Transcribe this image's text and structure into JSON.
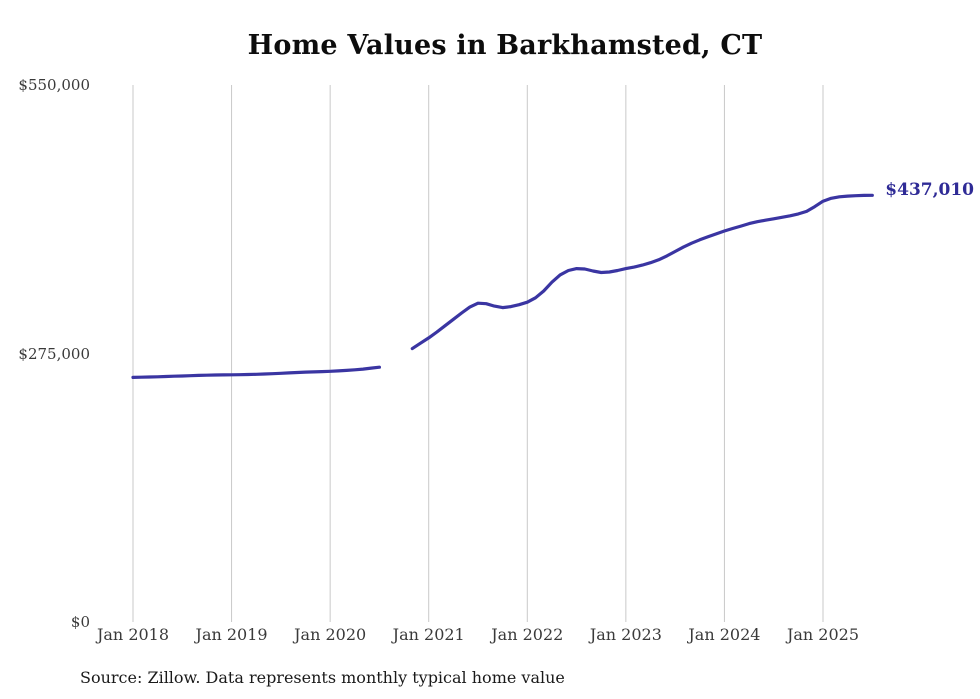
{
  "page": {
    "background": "#ffffff"
  },
  "chart_data": {
    "type": "line",
    "title": "Home Values in Barkhamsted, CT",
    "source_note": "Source: Zillow. Data represents monthly typical home value",
    "end_label": "$437,010",
    "last_value": 437010,
    "line_color": "#3a35a2",
    "end_label_color": "#2f2b96",
    "grid_color": "#c9c9c9",
    "tick_color": "#3a3a3a",
    "legend_position": "none",
    "grid": "vertical-only",
    "ylim": [
      0,
      550000
    ],
    "y_ticks": [
      {
        "label": "$0",
        "value": 0
      },
      {
        "label": "$275,000",
        "value": 275000
      },
      {
        "label": "$550,000",
        "value": 550000
      }
    ],
    "x_tick_labels": [
      "Jan 2018",
      "Jan 2019",
      "Jan 2020",
      "Jan 2021",
      "Jan 2022",
      "Jan 2023",
      "Jan 2024",
      "Jan 2025"
    ],
    "x_start_month": "Jan 2018",
    "x_end_month": "Jul 2025",
    "data_gap": "Aug 2020 - Oct 2020 (no data)",
    "series": [
      {
        "name": "Monthly typical home value",
        "start": "2018-01",
        "interval": "monthly",
        "values": [
          250500,
          250700,
          250900,
          251100,
          251400,
          251700,
          252000,
          252300,
          252600,
          252800,
          253000,
          253100,
          253200,
          253300,
          253500,
          253700,
          254000,
          254300,
          254700,
          255100,
          255500,
          255900,
          256200,
          256500,
          256800,
          257200,
          257700,
          258300,
          259000,
          260000,
          261000,
          null,
          null,
          null,
          280000,
          285500,
          291000,
          297000,
          303500,
          310000,
          316500,
          322500,
          326500,
          326000,
          323500,
          322000,
          323000,
          325000,
          327500,
          332000,
          339000,
          348000,
          355500,
          360000,
          362000,
          361500,
          359500,
          358000,
          358500,
          360000,
          362000,
          363500,
          365500,
          368000,
          371000,
          375000,
          379500,
          384000,
          388000,
          391500,
          394500,
          397500,
          400500,
          403000,
          405500,
          408000,
          410000,
          411500,
          413000,
          414500,
          416000,
          418000,
          420500,
          425500,
          431000,
          434000,
          435500,
          436200,
          436600,
          436900,
          437010
        ]
      }
    ]
  }
}
